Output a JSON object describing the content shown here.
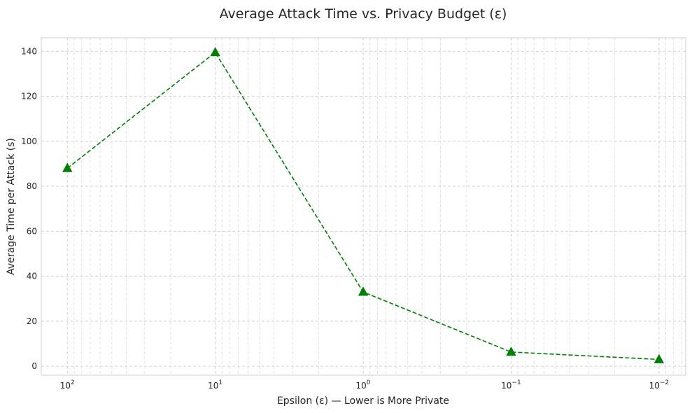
{
  "chart_data": {
    "type": "line",
    "title": "Average Attack Time vs. Privacy Budget (ε)",
    "xlabel": "Epsilon (ε) — Lower is More Private",
    "ylabel": "Average Time per Attack (s)",
    "x_scale": "log",
    "x_inverted": true,
    "x_ticks": [
      {
        "value": 100,
        "base": "10",
        "exp": "2"
      },
      {
        "value": 10,
        "base": "10",
        "exp": "1"
      },
      {
        "value": 1,
        "base": "10",
        "exp": "0"
      },
      {
        "value": 0.1,
        "base": "10",
        "exp": "−1"
      },
      {
        "value": 0.01,
        "base": "10",
        "exp": "−2"
      }
    ],
    "xlim": [
      150,
      0.0066
    ],
    "ylim": [
      -4,
      146
    ],
    "y_ticks": [
      0,
      20,
      40,
      60,
      80,
      100,
      120,
      140
    ],
    "grid": true,
    "series": [
      {
        "color": "#008000",
        "line_style": "dashed",
        "marker": "triangle-up",
        "x": [
          100,
          10,
          1,
          0.1,
          0.01
        ],
        "y": [
          88,
          139.5,
          33,
          6.3,
          3
        ]
      }
    ]
  }
}
